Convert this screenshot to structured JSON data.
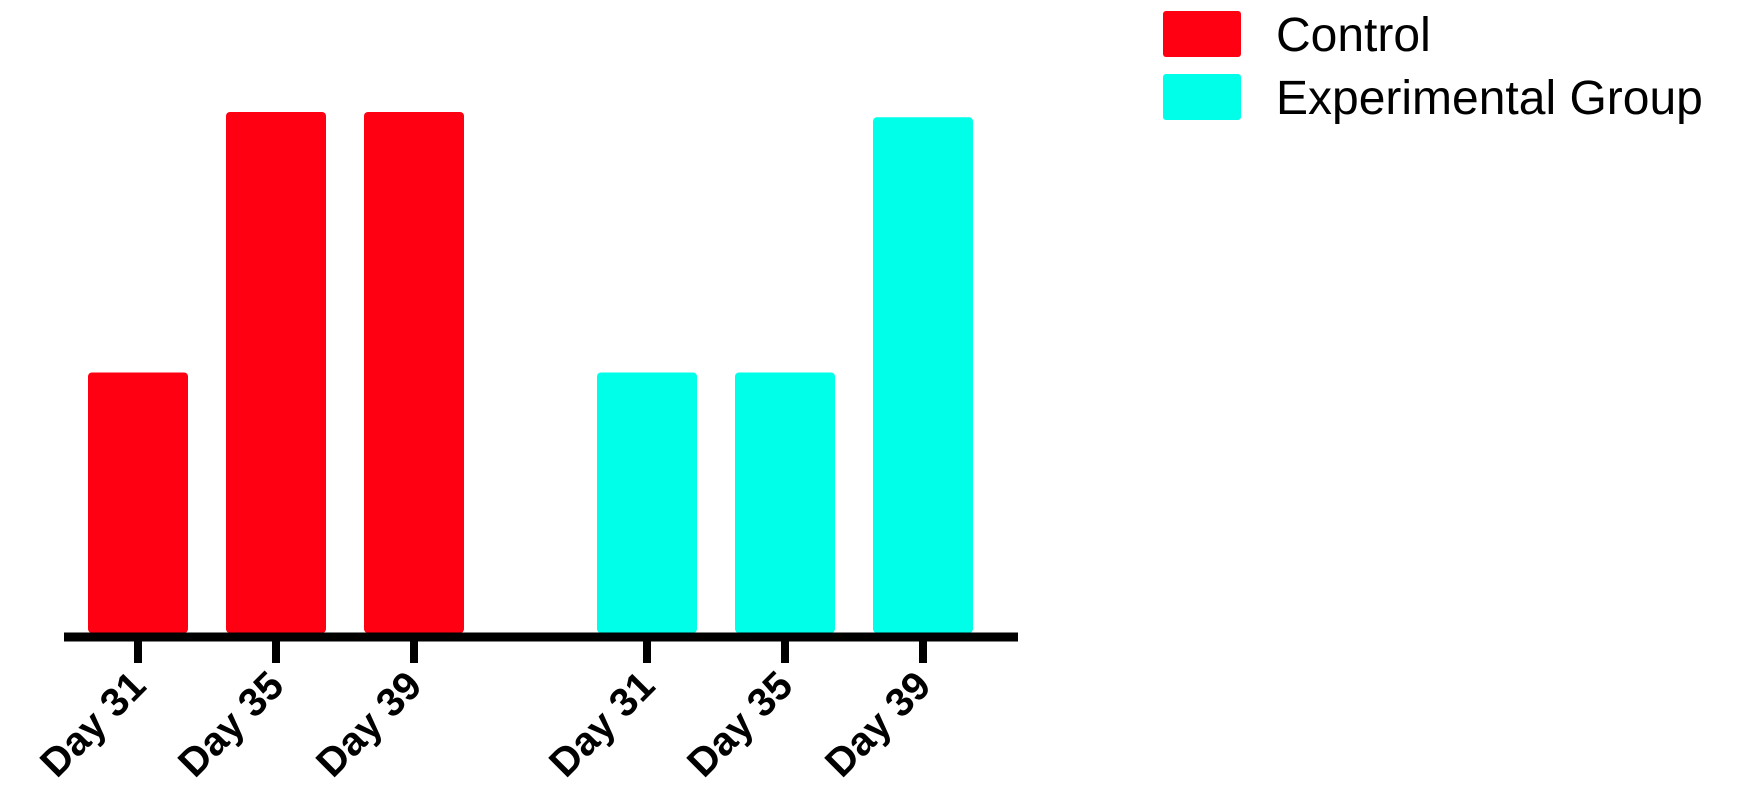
{
  "chart_data": {
    "type": "bar",
    "title": "",
    "xlabel": "",
    "ylabel": "",
    "ylim": [
      0,
      100
    ],
    "grid": false,
    "legend_position": "top-right",
    "groups": [
      {
        "name": "Control",
        "color": "#ff0013",
        "categories": [
          "Day 31",
          "Day 35",
          "Day 39"
        ],
        "values": [
          50,
          100,
          100
        ]
      },
      {
        "name": "Experimental Group",
        "color": "#00ffe9",
        "categories": [
          "Day 31",
          "Day 35",
          "Day 39"
        ],
        "values": [
          50,
          50,
          99
        ]
      }
    ],
    "legend": [
      {
        "label": "Control",
        "color": "#ff0013"
      },
      {
        "label": "Experimental Group",
        "color": "#00ffe9"
      }
    ]
  }
}
